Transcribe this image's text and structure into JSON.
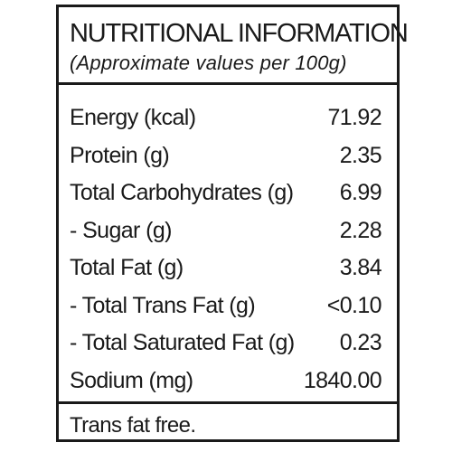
{
  "panel": {
    "title": "NUTRITIONAL INFORMATION",
    "subtitle": "(Approximate values per 100g)",
    "rows": [
      {
        "label": "Energy (kcal)",
        "value": "71.92"
      },
      {
        "label": "Protein (g)",
        "value": "2.35"
      },
      {
        "label": "Total Carbohydrates (g)",
        "value": "6.99"
      },
      {
        "label": "- Sugar (g)",
        "value": "2.28"
      },
      {
        "label": "Total Fat (g)",
        "value": "3.84"
      },
      {
        "label": "- Total Trans Fat (g)",
        "value": "<0.10"
      },
      {
        "label": "- Total Saturated Fat (g)",
        "value": "0.23"
      },
      {
        "label": "Sodium (mg)",
        "value": "1840.00"
      }
    ],
    "footer": "Trans fat free."
  },
  "colors": {
    "border": "#1a1a1a",
    "text": "#1a1a1a",
    "background": "#ffffff"
  }
}
